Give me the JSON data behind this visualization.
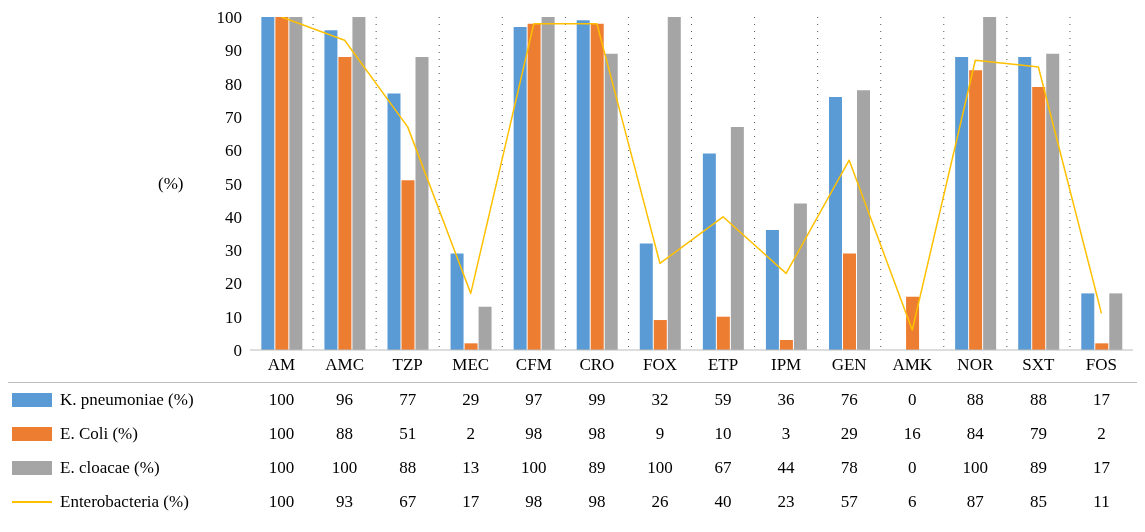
{
  "chart_data": {
    "type": "bar",
    "ylabel": "(%)",
    "categories": [
      "AM",
      "AMC",
      "TZP",
      "MEC",
      "CFM",
      "CRO",
      "FOX",
      "ETP",
      "IPM",
      "GEN",
      "AMK",
      "NOR",
      "SXT",
      "FOS"
    ],
    "series": [
      {
        "name": "K. pneumoniae (%)",
        "color": "#5b9bd5",
        "values": [
          100,
          96,
          77,
          29,
          97,
          99,
          32,
          59,
          36,
          76,
          0,
          88,
          88,
          17
        ]
      },
      {
        "name": "E. Coli (%)",
        "color": "#ed7d31",
        "values": [
          100,
          88,
          51,
          2,
          98,
          98,
          9,
          10,
          3,
          29,
          16,
          84,
          79,
          2
        ]
      },
      {
        "name": "E. cloacae (%)",
        "color": "#a5a5a5",
        "values": [
          100,
          100,
          88,
          13,
          100,
          89,
          100,
          67,
          44,
          78,
          0,
          100,
          89,
          17
        ]
      },
      {
        "name": "Enterobacteria (%)",
        "type": "line",
        "color": "#ffc000",
        "values": [
          100,
          93,
          67,
          17,
          98,
          98,
          26,
          40,
          23,
          57,
          6,
          87,
          85,
          11
        ]
      }
    ],
    "ylim": [
      0,
      100
    ],
    "yticks": [
      0,
      10,
      20,
      30,
      40,
      50,
      60,
      70,
      80,
      90,
      100
    ],
    "grid": "x",
    "legend": "bottom",
    "data_labels": true
  }
}
